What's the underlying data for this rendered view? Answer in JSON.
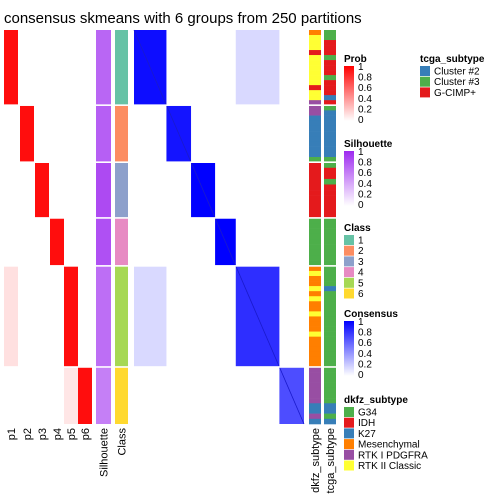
{
  "chart_data": {
    "type": "heatmap",
    "title": "consensus skmeans with 6 groups from 250 partitions",
    "prob_columns": [
      "p1",
      "p2",
      "p3",
      "p4",
      "p5",
      "p6"
    ],
    "column_labels": [
      "Silhouette",
      "Class"
    ],
    "annotation_labels": [
      "dkfz_subtype",
      "tcga_subtype"
    ],
    "groups": [
      {
        "class": "1",
        "n": 58,
        "color": "#66C2A5",
        "silhouette": 0.72,
        "tcga": [
          "Cluster #3",
          "Cluster #3",
          "G-CIMP+",
          "G-CIMP+",
          "G-CIMP+",
          "Cluster #3",
          "G-CIMP+",
          "G-CIMP+",
          "G-CIMP+",
          "Cluster #3",
          "G-CIMP+",
          "G-CIMP+",
          "G-CIMP+",
          "Cluster #2",
          "G-CIMP+"
        ],
        "dkfz": [
          "Mesenchymal",
          "RTK II Classic",
          "RTK II Classic",
          "RTK II Classic",
          "IDH",
          "RTK II Classic",
          "RTK II Classic",
          "RTK II Classic",
          "RTK II Classic",
          "RTK II Classic",
          "RTK II Classic",
          "IDH",
          "RTK II Classic",
          "RTK II Classic",
          "RTK I PDGFRA"
        ]
      },
      {
        "class": "2",
        "n": 44,
        "color": "#FC8D62",
        "silhouette": 0.75,
        "tcga": [
          "Cluster #3",
          "Cluster #2",
          "Cluster #2",
          "Cluster #2",
          "Cluster #2",
          "Cluster #2",
          "Cluster #2",
          "Cluster #2",
          "Cluster #2",
          "Cluster #2",
          "Cluster #3"
        ],
        "dkfz": [
          "RTK I PDGFRA",
          "RTK I PDGFRA",
          "K27",
          "K27",
          "K27",
          "K27",
          "K27",
          "K27",
          "K27",
          "K27",
          "G34"
        ]
      },
      {
        "class": "3",
        "n": 43,
        "color": "#8DA0CB",
        "silhouette": 0.85,
        "tcga": [
          "Cluster #3",
          "G-CIMP+",
          "G-CIMP+",
          "Cluster #3",
          "G-CIMP+",
          "G-CIMP+",
          "G-CIMP+",
          "G-CIMP+",
          "G-CIMP+",
          "G-CIMP+"
        ],
        "dkfz": [
          "IDH",
          "IDH",
          "IDH",
          "IDH",
          "IDH",
          "IDH",
          "IDH",
          "IDH",
          "IDH",
          "IDH"
        ]
      },
      {
        "class": "4",
        "n": 37,
        "color": "#E78AC3",
        "silhouette": 0.82,
        "tcga": [
          "Cluster #3",
          "Cluster #3",
          "Cluster #3",
          "Cluster #3",
          "Cluster #3",
          "Cluster #3",
          "Cluster #3",
          "Cluster #3",
          "Cluster #3"
        ],
        "dkfz": [
          "G34",
          "G34",
          "G34",
          "G34",
          "G34",
          "G34",
          "G34",
          "G34",
          "G34"
        ]
      },
      {
        "class": "5",
        "n": 78,
        "color": "#A6D854",
        "silhouette": 0.68,
        "tcga": [
          "Cluster #3",
          "Cluster #3",
          "Cluster #3",
          "Cluster #3",
          "Cluster #2",
          "Cluster #3",
          "Cluster #3",
          "Cluster #3",
          "Cluster #3",
          "Cluster #3",
          "Cluster #3",
          "Cluster #3",
          "Cluster #3",
          "Cluster #3",
          "Cluster #3",
          "Cluster #3",
          "Cluster #3",
          "Cluster #3",
          "Cluster #3",
          "Cluster #3"
        ],
        "dkfz": [
          "Mesenchymal",
          "RTK II Classic",
          "Mesenchymal",
          "Mesenchymal",
          "RTK II Classic",
          "Mesenchymal",
          "RTK II Classic",
          "Mesenchymal",
          "Mesenchymal",
          "RTK II Classic",
          "Mesenchymal",
          "Mesenchymal",
          "Mesenchymal",
          "RTK II Classic",
          "Mesenchymal",
          "Mesenchymal",
          "Mesenchymal",
          "Mesenchymal",
          "Mesenchymal",
          "Mesenchymal"
        ]
      },
      {
        "class": "6",
        "n": 44,
        "color": "#FFD92F",
        "silhouette": 0.6,
        "tcga": [
          "Cluster #3",
          "Cluster #3",
          "Cluster #3",
          "Cluster #3",
          "Cluster #3",
          "Cluster #3",
          "Cluster #3",
          "Cluster #2",
          "Cluster #2",
          "Cluster #3",
          "Cluster #2"
        ],
        "dkfz": [
          "RTK I PDGFRA",
          "RTK I PDGFRA",
          "RTK I PDGFRA",
          "RTK I PDGFRA",
          "RTK I PDGFRA",
          "RTK I PDGFRA",
          "RTK I PDGFRA",
          "K27",
          "K27",
          "RTK I PDGFRA",
          "K27"
        ]
      }
    ],
    "legends": {
      "prob": {
        "title": "Prob",
        "ticks": [
          "1",
          "0.8",
          "0.6",
          "0.4",
          "0.2",
          "0"
        ],
        "color_high": "#FF0000",
        "color_low": "#FFFFFF"
      },
      "silhouette": {
        "title": "Silhouette",
        "ticks": [
          "1",
          "0.8",
          "0.6",
          "0.4",
          "0.2",
          "0"
        ],
        "color_high": "#9E2AF0",
        "color_low": "#FFFFFF"
      },
      "class": {
        "title": "Class",
        "labels": [
          "1",
          "2",
          "3",
          "4",
          "5",
          "6"
        ],
        "colors": [
          "#66C2A5",
          "#FC8D62",
          "#8DA0CB",
          "#E78AC3",
          "#A6D854",
          "#FFD92F"
        ]
      },
      "consensus": {
        "title": "Consensus",
        "ticks": [
          "1",
          "0.8",
          "0.6",
          "0.4",
          "0.2",
          "0"
        ],
        "color_high": "#0000FF",
        "color_low": "#FFFFFF"
      },
      "dkfz": {
        "title": "dkfz_subtype",
        "labels": [
          "G34",
          "IDH",
          "K27",
          "Mesenchymal",
          "RTK I PDGFRA",
          "RTK II Classic"
        ],
        "colors": [
          "#4DAF4A",
          "#E41A1C",
          "#377EB8",
          "#FF7F00",
          "#984EA3",
          "#FFFF33"
        ]
      },
      "tcga": {
        "title": "tcga_subtype",
        "labels": [
          "Cluster #2",
          "Cluster #3",
          "G-CIMP+"
        ],
        "colors": [
          "#377EB8",
          "#4DAF4A",
          "#E41A1C"
        ]
      }
    }
  }
}
